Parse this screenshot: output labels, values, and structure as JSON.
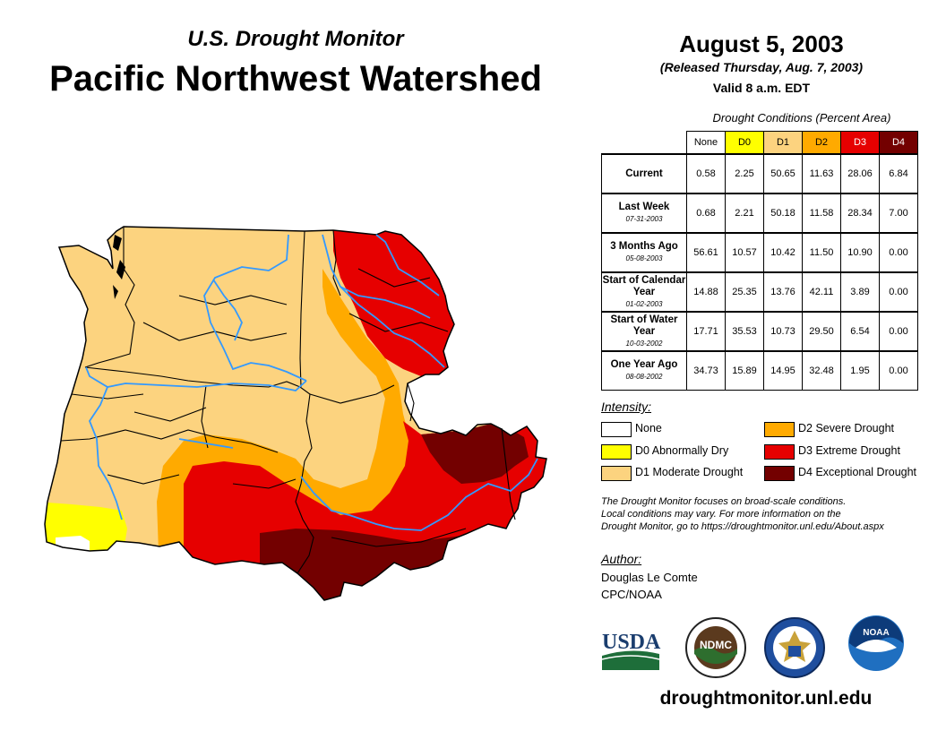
{
  "header": {
    "subtitle": "U.S. Drought Monitor",
    "title": "Pacific Northwest Watershed",
    "date": "August 5, 2003",
    "released": "(Released Thursday, Aug. 7, 2003)",
    "valid": "Valid 8 a.m. EDT"
  },
  "table": {
    "caption": "Drought Conditions (Percent Area)",
    "columns": [
      "None",
      "D0",
      "D1",
      "D2",
      "D3",
      "D4"
    ],
    "column_colors": [
      "#ffffff",
      "#ffff00",
      "#fcd37f",
      "#ffaa00",
      "#e60000",
      "#730000"
    ],
    "rows": [
      {
        "label": "Current",
        "date": "",
        "values": [
          "0.58",
          "2.25",
          "50.65",
          "11.63",
          "28.06",
          "6.84"
        ]
      },
      {
        "label": "Last Week",
        "date": "07-31-2003",
        "values": [
          "0.68",
          "2.21",
          "50.18",
          "11.58",
          "28.34",
          "7.00"
        ]
      },
      {
        "label": "3 Months Ago",
        "date": "05-08-2003",
        "values": [
          "56.61",
          "10.57",
          "10.42",
          "11.50",
          "10.90",
          "0.00"
        ]
      },
      {
        "label": "Start of Calendar Year",
        "date": "01-02-2003",
        "values": [
          "14.88",
          "25.35",
          "13.76",
          "42.11",
          "3.89",
          "0.00"
        ]
      },
      {
        "label": "Start of Water Year",
        "date": "10-03-2002",
        "values": [
          "17.71",
          "35.53",
          "10.73",
          "29.50",
          "6.54",
          "0.00"
        ]
      },
      {
        "label": "One Year Ago",
        "date": "08-08-2002",
        "values": [
          "34.73",
          "15.89",
          "14.95",
          "32.48",
          "1.95",
          "0.00"
        ]
      }
    ]
  },
  "legend": {
    "heading": "Intensity:",
    "items": [
      {
        "label": "None",
        "color": "#ffffff"
      },
      {
        "label": "D0 Abnormally Dry",
        "color": "#ffff00"
      },
      {
        "label": "D1 Moderate Drought",
        "color": "#fcd37f"
      },
      {
        "label": "D2 Severe Drought",
        "color": "#ffaa00"
      },
      {
        "label": "D3 Extreme Drought",
        "color": "#e60000"
      },
      {
        "label": "D4 Exceptional Drought",
        "color": "#730000"
      }
    ]
  },
  "note": {
    "line1": "The Drought Monitor focuses on broad-scale conditions.",
    "line2": "Local conditions may vary. For more information on the",
    "line3": "Drought Monitor, go to https://droughtmonitor.unl.edu/About.aspx"
  },
  "author": {
    "heading": "Author:",
    "name": "Douglas Le Comte",
    "org": "CPC/NOAA"
  },
  "logos": {
    "usda": "USDA",
    "ndmc": "NDMC",
    "noaa": "NOAA"
  },
  "footer": {
    "url": "droughtmonitor.unl.edu"
  }
}
